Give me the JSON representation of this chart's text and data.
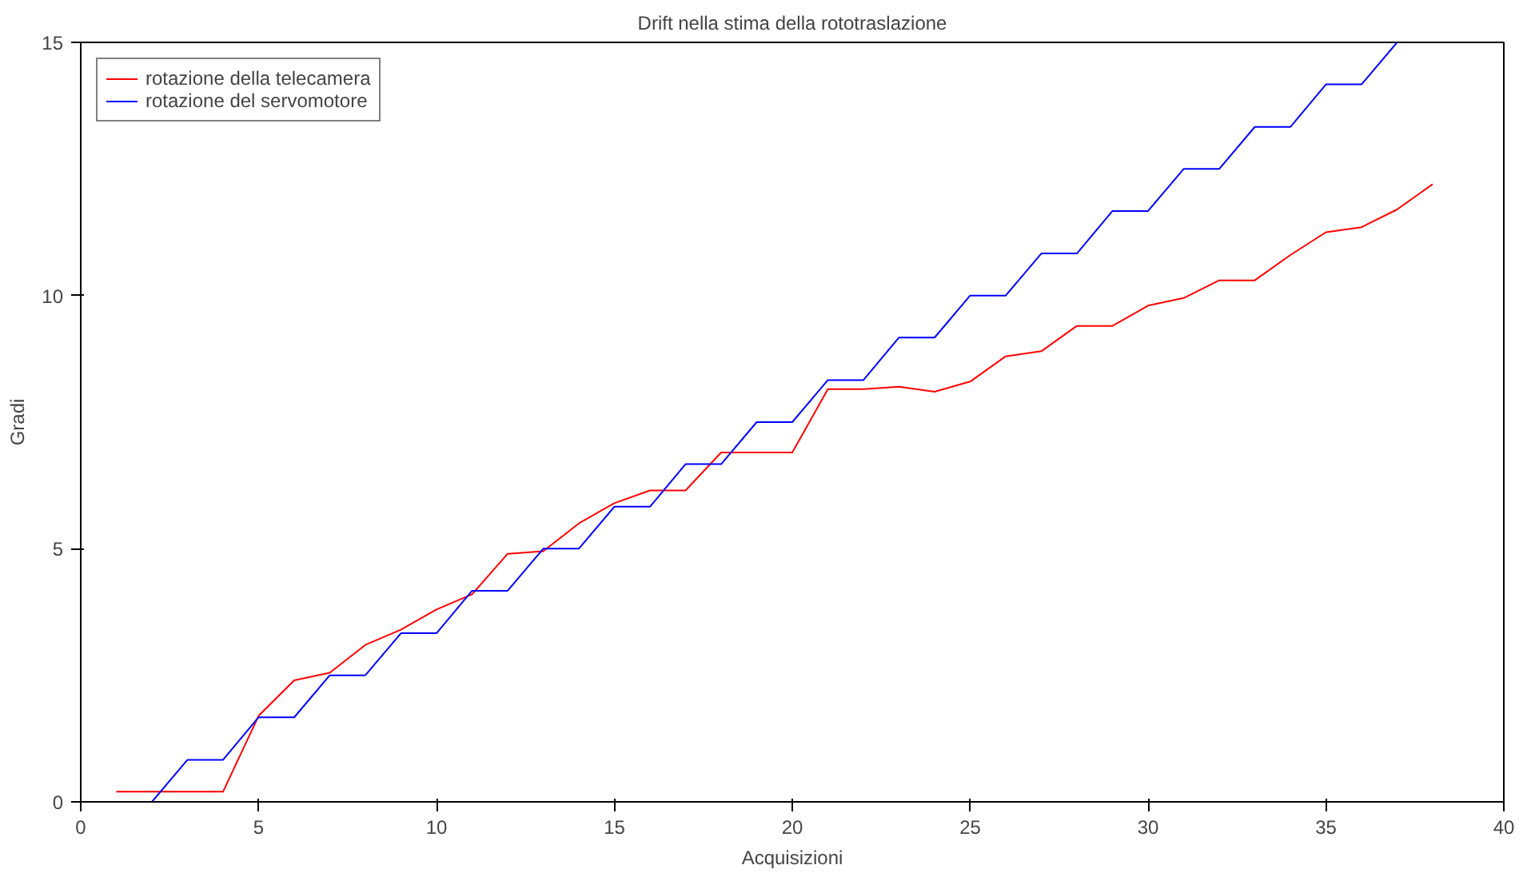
{
  "chart_data": {
    "type": "line",
    "title": "Drift nella stima della rototraslazione",
    "xlabel": "Acquisizioni",
    "ylabel": "Gradi",
    "xlim": [
      0,
      40
    ],
    "ylim": [
      0,
      15
    ],
    "xticks": [
      0,
      5,
      10,
      15,
      20,
      25,
      30,
      35,
      40
    ],
    "yticks": [
      0,
      5,
      10,
      15
    ],
    "grid": false,
    "legend": "top left",
    "marker": "none",
    "line_style": "solid",
    "series": [
      {
        "name": "rotazione della telecamera",
        "color": "#ff0000",
        "x": [
          1,
          2,
          3,
          4,
          5,
          6,
          7,
          8,
          9,
          10,
          11,
          12,
          13,
          14,
          15,
          16,
          17,
          18,
          19,
          20,
          21,
          22,
          23,
          24,
          25,
          26,
          27,
          28,
          29,
          30,
          31,
          32,
          33,
          34,
          35,
          36,
          37,
          38
        ],
        "values": [
          0.2,
          0.2,
          0.2,
          0.2,
          1.7,
          2.4,
          2.55,
          3.1,
          3.4,
          3.8,
          4.1,
          4.9,
          4.95,
          5.5,
          5.9,
          6.15,
          6.15,
          6.9,
          6.9,
          6.9,
          8.15,
          8.15,
          8.2,
          8.1,
          8.3,
          8.8,
          8.9,
          9.4,
          9.4,
          9.8,
          9.95,
          10.3,
          10.3,
          10.8,
          11.25,
          11.35,
          11.7,
          12.2
        ]
      },
      {
        "name": "rotazione del servomotore",
        "color": "#0000ff",
        "x": [
          2,
          3,
          4,
          5,
          6,
          7,
          8,
          9,
          10,
          11,
          12,
          13,
          14,
          15,
          16,
          17,
          18,
          19,
          20,
          21,
          22,
          23,
          24,
          25,
          26,
          27,
          28,
          29,
          30,
          31,
          32,
          33,
          34,
          35,
          36,
          37
        ],
        "values": [
          0,
          0.83,
          0.83,
          1.67,
          1.67,
          2.5,
          2.5,
          3.33,
          3.33,
          4.17,
          4.17,
          5,
          5,
          5.83,
          5.83,
          6.67,
          6.67,
          7.5,
          7.5,
          8.33,
          8.33,
          9.17,
          9.17,
          10,
          10,
          10.83,
          10.83,
          11.67,
          11.67,
          12.5,
          12.5,
          13.33,
          13.33,
          14.17,
          14.17,
          15
        ]
      }
    ]
  }
}
